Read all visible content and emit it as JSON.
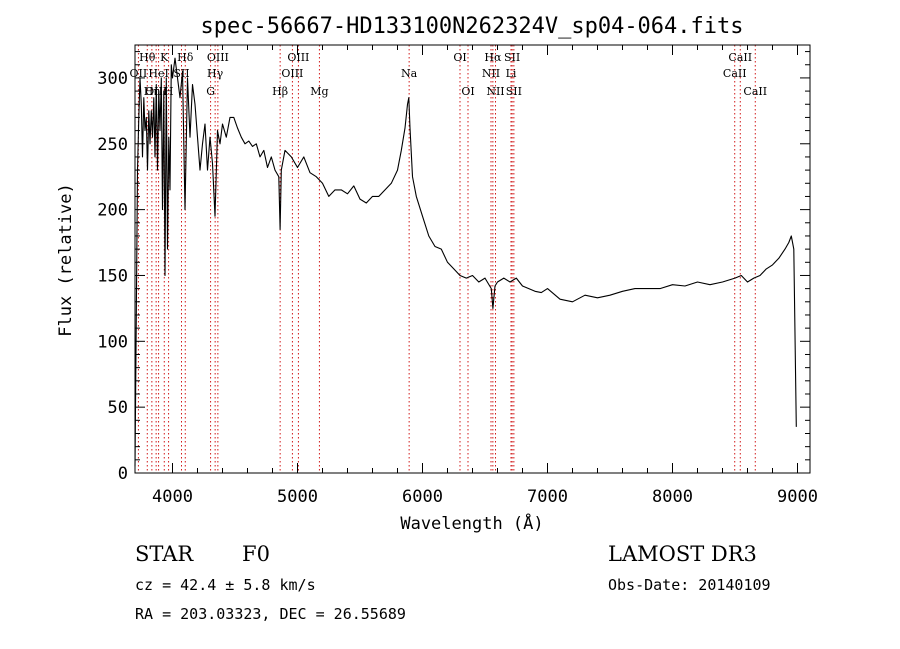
{
  "chart_data": {
    "type": "line",
    "title": "spec-56667-HD133100N262324V_sp04-064.fits",
    "xlabel": "Wavelength (Å)",
    "ylabel": "Flux (relative)",
    "xlim": [
      3700,
      9100
    ],
    "ylim": [
      0,
      325
    ],
    "xticks": [
      4000,
      5000,
      6000,
      7000,
      8000,
      9000
    ],
    "yticks": [
      0,
      50,
      100,
      150,
      200,
      250,
      300
    ],
    "grid": false,
    "line_color": "#000000",
    "marker_color": "#cc0000",
    "series": [
      {
        "x": [
          3700,
          3710,
          3720,
          3730,
          3740,
          3750,
          3760,
          3770,
          3780,
          3790,
          3800,
          3810,
          3820,
          3830,
          3840,
          3850,
          3860,
          3870,
          3880,
          3890,
          3900,
          3910,
          3920,
          3930,
          3940,
          3950,
          3960,
          3970,
          3980,
          3990,
          4000,
          4020,
          4040,
          4060,
          4080,
          4100,
          4120,
          4140,
          4160,
          4180,
          4200,
          4220,
          4240,
          4260,
          4280,
          4300,
          4320,
          4340,
          4360,
          4380,
          4400,
          4430,
          4460,
          4490,
          4520,
          4550,
          4580,
          4610,
          4640,
          4670,
          4700,
          4730,
          4760,
          4790,
          4820,
          4850,
          4861,
          4870,
          4900,
          4950,
          5000,
          5050,
          5100,
          5150,
          5200,
          5250,
          5300,
          5350,
          5400,
          5450,
          5500,
          5550,
          5600,
          5650,
          5700,
          5750,
          5800,
          5830,
          5860,
          5880,
          5890,
          5900,
          5920,
          5950,
          6000,
          6050,
          6100,
          6150,
          6200,
          6250,
          6300,
          6350,
          6400,
          6450,
          6500,
          6550,
          6563,
          6580,
          6600,
          6650,
          6700,
          6750,
          6800,
          6850,
          6900,
          6950,
          7000,
          7100,
          7200,
          7300,
          7400,
          7500,
          7600,
          7700,
          7800,
          7900,
          8000,
          8100,
          8200,
          8300,
          8400,
          8500,
          8550,
          8600,
          8650,
          8700,
          8750,
          8800,
          8850,
          8900,
          8930,
          8950,
          8970,
          8990
        ],
        "y": [
          5,
          120,
          230,
          270,
          300,
          280,
          240,
          285,
          260,
          270,
          230,
          275,
          250,
          275,
          255,
          285,
          240,
          295,
          230,
          290,
          260,
          300,
          200,
          290,
          150,
          300,
          170,
          255,
          215,
          310,
          300,
          315,
          300,
          285,
          305,
          200,
          300,
          255,
          295,
          280,
          255,
          230,
          250,
          265,
          230,
          255,
          235,
          195,
          260,
          250,
          265,
          255,
          270,
          270,
          262,
          255,
          250,
          252,
          248,
          250,
          240,
          245,
          232,
          240,
          230,
          225,
          185,
          230,
          245,
          240,
          232,
          240,
          228,
          225,
          220,
          210,
          215,
          215,
          212,
          218,
          208,
          205,
          210,
          210,
          215,
          220,
          230,
          245,
          262,
          280,
          285,
          262,
          225,
          210,
          195,
          180,
          172,
          170,
          160,
          155,
          150,
          148,
          150,
          145,
          148,
          140,
          125,
          142,
          145,
          148,
          145,
          148,
          142,
          140,
          138,
          137,
          140,
          132,
          130,
          135,
          133,
          135,
          138,
          140,
          140,
          140,
          143,
          142,
          145,
          143,
          145,
          148,
          150,
          145,
          148,
          150,
          155,
          158,
          163,
          170,
          175,
          180,
          170,
          35
        ]
      }
    ],
    "lines": [
      {
        "label": "Hθ",
        "x": 3798,
        "row": 0
      },
      {
        "label": "OII",
        "x": 3727,
        "row": 1
      },
      {
        "label": "OIII",
        "x": 3869,
        "row": 2
      },
      {
        "label": "K",
        "x": 3934,
        "row": 0
      },
      {
        "label": "HeI",
        "x": 3889,
        "row": 1
      },
      {
        "label": "Hη",
        "x": 3835,
        "row": 2
      },
      {
        "label": "Hδ",
        "x": 4102,
        "row": 0
      },
      {
        "label": "SII",
        "x": 4072,
        "row": 1
      },
      {
        "label": "H",
        "x": 3969,
        "row": 2
      },
      {
        "label": "OIII",
        "x": 4363,
        "row": 0
      },
      {
        "label": "Hγ",
        "x": 4341,
        "row": 1
      },
      {
        "label": "G",
        "x": 4305,
        "row": 2
      },
      {
        "label": "OIII",
        "x": 5007,
        "row": 0
      },
      {
        "label": "OIII",
        "x": 4959,
        "row": 1
      },
      {
        "label": "Hβ",
        "x": 4861,
        "row": 2
      },
      {
        "label": "Mg",
        "x": 5175,
        "row": 2
      },
      {
        "label": "Na",
        "x": 5893,
        "row": 1
      },
      {
        "label": "OI",
        "x": 6300,
        "row": 0
      },
      {
        "label": "OI",
        "x": 6364,
        "row": 2
      },
      {
        "label": "Hα",
        "x": 6563,
        "row": 0
      },
      {
        "label": "NII",
        "x": 6548,
        "row": 1
      },
      {
        "label": "NII",
        "x": 6584,
        "row": 2
      },
      {
        "label": "SII",
        "x": 6717,
        "row": 0
      },
      {
        "label": "Li",
        "x": 6708,
        "row": 1
      },
      {
        "label": "SII",
        "x": 6731,
        "row": 2
      },
      {
        "label": "CaII",
        "x": 8542,
        "row": 0
      },
      {
        "label": "CaII",
        "x": 8498,
        "row": 1
      },
      {
        "label": "CaII",
        "x": 8662,
        "row": 2
      }
    ]
  },
  "info": {
    "class": "STAR",
    "subclass": "F0",
    "survey": "LAMOST DR3",
    "cz": "cz = 42.4 ± 5.8 km/s",
    "obsdate": "Obs-Date: 20140109",
    "radec": "RA = 203.03323, DEC =  26.55689"
  }
}
